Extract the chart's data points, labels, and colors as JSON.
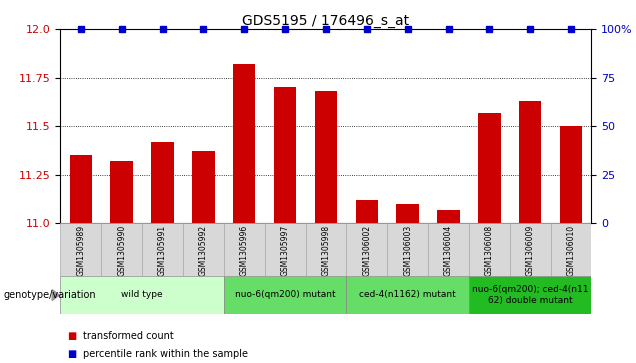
{
  "title": "GDS5195 / 176496_s_at",
  "samples": [
    "GSM1305989",
    "GSM1305990",
    "GSM1305991",
    "GSM1305992",
    "GSM1305996",
    "GSM1305997",
    "GSM1305998",
    "GSM1306002",
    "GSM1306003",
    "GSM1306004",
    "GSM1306008",
    "GSM1306009",
    "GSM1306010"
  ],
  "bar_values": [
    11.35,
    11.32,
    11.42,
    11.37,
    11.82,
    11.7,
    11.68,
    11.12,
    11.1,
    11.07,
    11.57,
    11.63,
    11.5
  ],
  "percentile_values": [
    100,
    100,
    100,
    100,
    100,
    100,
    100,
    100,
    100,
    100,
    100,
    100,
    100
  ],
  "ylim_left": [
    11.0,
    12.0
  ],
  "ylim_right": [
    0,
    100
  ],
  "yticks_left": [
    11.0,
    11.25,
    11.5,
    11.75,
    12.0
  ],
  "yticks_right": [
    0,
    25,
    50,
    75,
    100
  ],
  "bar_color": "#cc0000",
  "percentile_color": "#0000cc",
  "group_spans": [
    {
      "start": 0,
      "end": 3,
      "label": "wild type",
      "color": "#ccffcc"
    },
    {
      "start": 4,
      "end": 6,
      "label": "nuo-6(qm200) mutant",
      "color": "#66dd66"
    },
    {
      "start": 7,
      "end": 9,
      "label": "ced-4(n1162) mutant",
      "color": "#66dd66"
    },
    {
      "start": 10,
      "end": 12,
      "label": "nuo-6(qm200); ced-4(n11\n62) double mutant",
      "color": "#22bb22"
    }
  ],
  "genotype_label": "genotype/variation",
  "legend_items": [
    {
      "label": "transformed count",
      "color": "#cc0000"
    },
    {
      "label": "percentile rank within the sample",
      "color": "#0000cc"
    }
  ],
  "sample_bg_color": "#d8d8d8",
  "sample_border_color": "#aaaaaa"
}
